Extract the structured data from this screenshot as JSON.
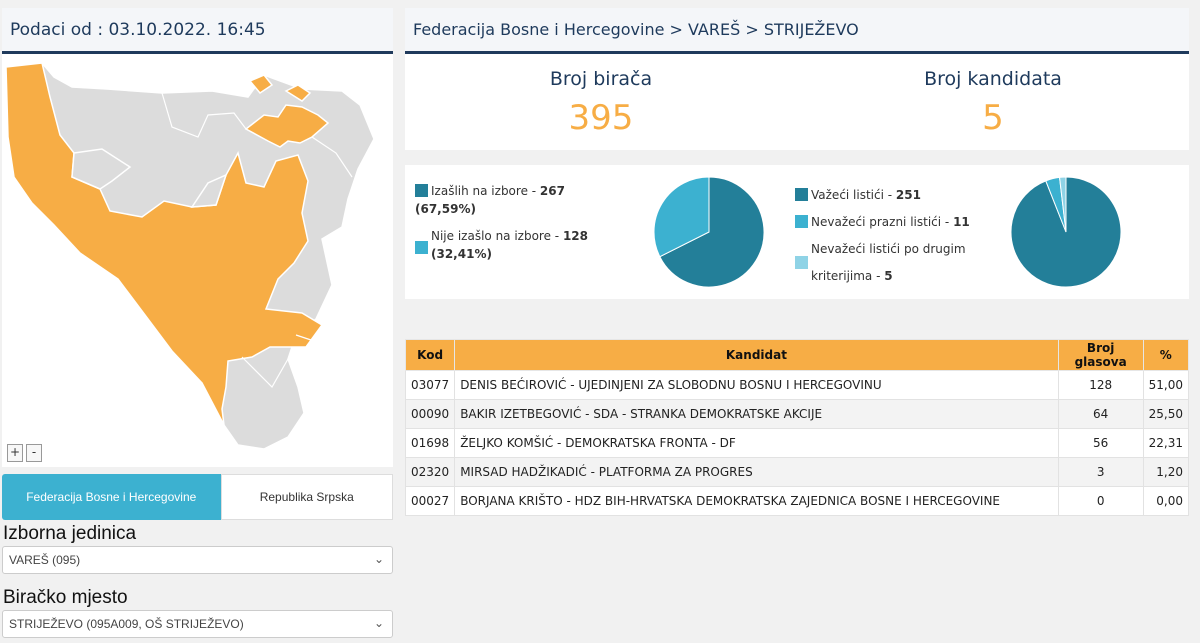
{
  "header": {
    "date_text": "Podaci od : 03.10.2022. 16:45",
    "breadcrumb": "Federacija Bosne i Hercegovine > VAREŠ > STRIJEŽEVO"
  },
  "map": {
    "zoom_in": "+",
    "zoom_out": "-"
  },
  "tabs": {
    "fbih": "Federacija Bosne i Hercegovine",
    "rs": "Republika Srpska"
  },
  "filters": {
    "izborna_label": "Izborna jedinica",
    "izborna_value": "VAREŠ (095)",
    "mjesto_label": "Biračko mjesto",
    "mjesto_value": "STRIJEŽEVO (095A009, OŠ STRIJEŽEVO)"
  },
  "stats": {
    "voters_label": "Broj birača",
    "voters_value": "395",
    "candidates_label": "Broj kandidata",
    "candidates_value": "5"
  },
  "turnout": {
    "items": [
      {
        "label": "Izašlih na izbore - ",
        "value": "267 (67,59%)",
        "color": "#237f99",
        "amount": 267
      },
      {
        "label": "Nije izašlo na izbore - ",
        "value": "128",
        "value2": "(32,41%)",
        "color": "#3cb1d0",
        "amount": 128
      }
    ]
  },
  "ballots": {
    "items": [
      {
        "label": "Važeći listići - ",
        "value": "251",
        "color": "#237f99",
        "amount": 251
      },
      {
        "label": "Nevažeći prazni listići - ",
        "value": "11",
        "color": "#3cb1d0",
        "amount": 11
      },
      {
        "label": "Nevažeći listići po drugim",
        "label2": "kriterijima - ",
        "value": "5",
        "color": "#8fd3e6",
        "amount": 5
      }
    ]
  },
  "table": {
    "headers": [
      "Kod",
      "Kandidat",
      "Broj glasova",
      "%"
    ],
    "rows": [
      {
        "code": "03077",
        "name": "DENIS BEĆIROVIĆ - UJEDINJENI ZA SLOBODNU BOSNU I HERCEGOVINU",
        "votes": "128",
        "pct": "51,00"
      },
      {
        "code": "00090",
        "name": "BAKIR IZETBEGOVIĆ - SDA - STRANKA DEMOKRATSKE AKCIJE",
        "votes": "64",
        "pct": "25,50"
      },
      {
        "code": "01698",
        "name": "ŽELJKO KOMŠIĆ - DEMOKRATSKA FRONTA - DF",
        "votes": "56",
        "pct": "22,31"
      },
      {
        "code": "02320",
        "name": "MIRSAD HADŽIKADIĆ - PLATFORMA ZA PROGRES",
        "votes": "3",
        "pct": "1,20"
      },
      {
        "code": "00027",
        "name": "BORJANA KRIŠTO - HDZ BIH-HRVATSKA DEMOKRATSKA ZAJEDNICA BOSNE I HERCEGOVINE",
        "votes": "0",
        "pct": "0,00"
      }
    ]
  },
  "colors": {
    "accent_orange": "#f7ad45",
    "teal_dark": "#237f99",
    "teal": "#3cb1d0",
    "teal_light": "#8fd3e6",
    "navy": "#1e3a5c"
  }
}
